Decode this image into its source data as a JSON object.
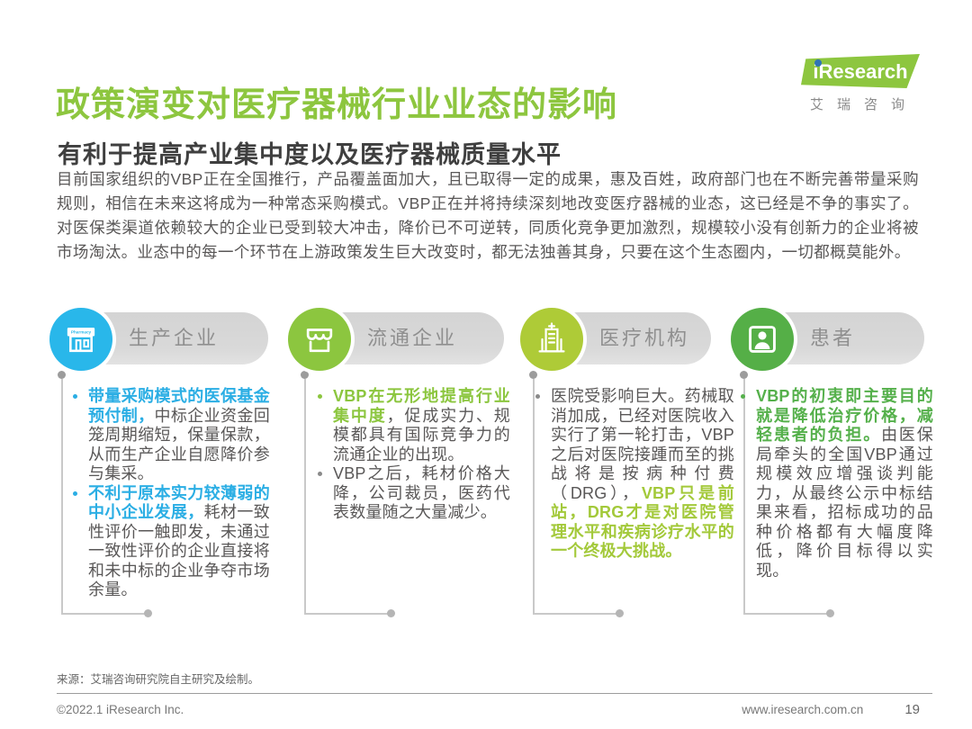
{
  "theme": {
    "green": "#8DC63F",
    "blue": "#2BAEE4",
    "body_text": "#595757"
  },
  "header": {
    "title": "政策演变对医疗器械行业业态的影响",
    "subtitle": "有利于提高产业集中度以及医疗器械质量水平",
    "logo": {
      "brand": "iResearch",
      "brand_cn": "艾瑞咨询"
    }
  },
  "intro": "目前国家组织的VBP正在全国推行，产品覆盖面加大，且已取得一定的成果，惠及百姓，政府部门也在不断完善带量采购规则，相信在未来这将成为一种常态采购模式。VBP正在并将持续深刻地改变医疗器械的业态，这已经是不争的事实了。对医保类渠道依赖较大的企业已受到较大冲击，降价已不可逆转，同质化竞争更加激烈，规模较小没有创新力的企业将被市场淘汰。业态中的每一个环节在上游政策发生巨大改变时，都无法独善其身，只要在这个生态圈内，一切都概莫能外。",
  "columns": [
    {
      "label": "生产企业",
      "icon": "pharmacy-storefront-icon",
      "accent": "#2BAEE4",
      "circle_color": "#29B7EA",
      "bullets": [
        {
          "dot_color": "#2BAEE4",
          "segments": [
            {
              "text": "带量采购模式的医保基金预付制，",
              "emphasis": true
            },
            {
              "text": "中标企业资金回笼周期缩短，保量保款，从而生产企业自愿降价参与集采。",
              "emphasis": false
            }
          ]
        },
        {
          "dot_color": "#2BAEE4",
          "segments": [
            {
              "text": "不利于原本实力较薄弱的中小企业发展，",
              "emphasis": true
            },
            {
              "text": "耗材一致性评价一触即发，未通过一致性评价的企业直接将和未中标的企业争夺市场余量。",
              "emphasis": false
            }
          ]
        }
      ]
    },
    {
      "label": "流通企业",
      "icon": "storefront-awning-icon",
      "accent": "#8CC63F",
      "circle_color": "#8CC63F",
      "bullets": [
        {
          "dot_color": "#8CC63F",
          "segments": [
            {
              "text": "VBP在无形地提高行业集中度",
              "emphasis": true
            },
            {
              "text": "，促成实力、规模都具有国际竞争力的流通企业的出现。",
              "emphasis": false
            }
          ]
        },
        {
          "dot_color": "#8a8a8a",
          "segments": [
            {
              "text": "VBP之后，耗材价格大降，公司裁员，医药代表数量随之大量减少。",
              "emphasis": false
            }
          ]
        }
      ]
    },
    {
      "label": "医疗机构",
      "icon": "hospital-building-icon",
      "accent": "#A3C93A",
      "circle_color": "#AECB37",
      "bullets": [
        {
          "dot_color": "#8a8a8a",
          "segments": [
            {
              "text": "医院受影响巨大。药械取消加成，已经对医院收入实行了第一轮打击，VBP之后对医院接踵而至的挑战将是按病种付费（DRG），",
              "emphasis": false
            },
            {
              "text": "VBP只是前站，DRG才是对医院管理水平和疾病诊疗水平的一个终极大挑战。",
              "emphasis": true
            }
          ]
        }
      ]
    },
    {
      "label": "患者",
      "icon": "patient-portrait-icon",
      "accent": "#55B04B",
      "circle_color": "#55AF47",
      "bullets": [
        {
          "dot_color": "#55B04B",
          "segments": [
            {
              "text": "VBP的初衷即主要目的就是降低治疗价格，减轻患者的负担。",
              "emphasis": true
            },
            {
              "text": "由医保局牵头的全国VBP通过规模效应增强谈判能力，从最终公示中标结果来看，招标成功的品种价格都有大幅度降低，降价目标得以实现。",
              "emphasis": false
            }
          ]
        }
      ]
    }
  ],
  "footer": {
    "source": "来源：艾瑞咨询研究院自主研究及绘制。",
    "copyright": "©2022.1 iResearch Inc.",
    "website": "www.iresearch.com.cn",
    "page_number": "19"
  }
}
